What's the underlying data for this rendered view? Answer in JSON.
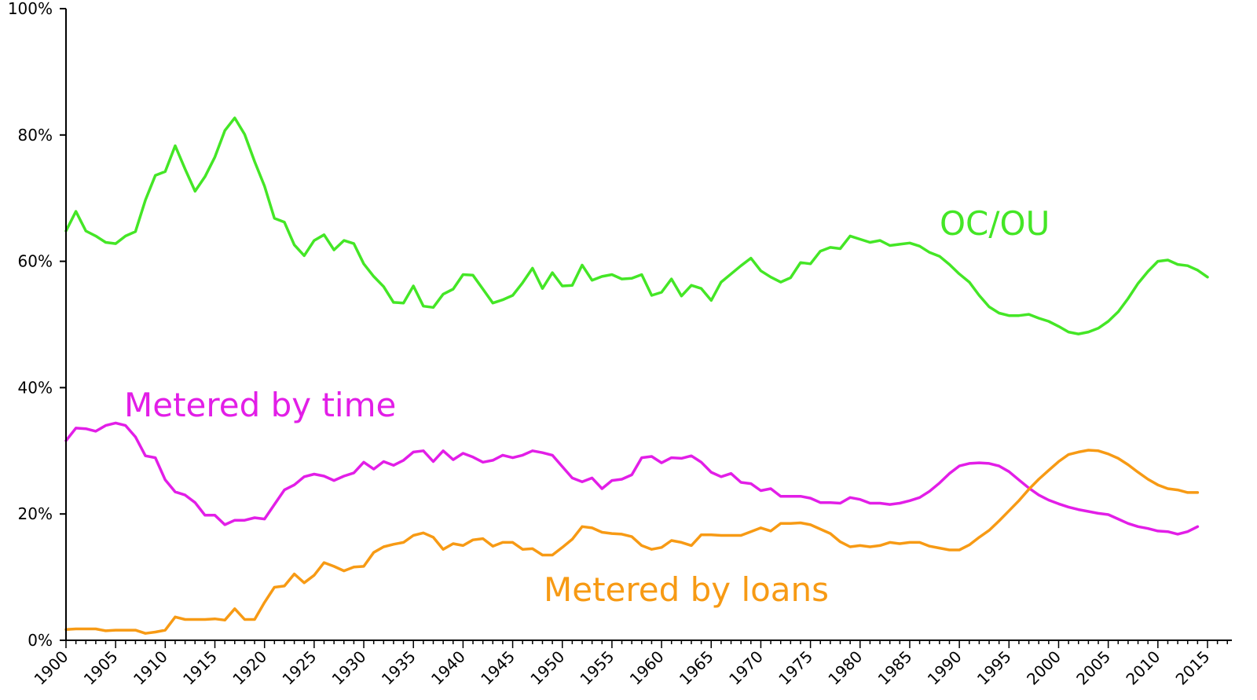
{
  "chart_data": {
    "type": "line",
    "title": "",
    "xlabel": "",
    "ylabel": "",
    "xlim": [
      1900,
      2018
    ],
    "ylim": [
      0,
      100
    ],
    "grid": false,
    "y_ticks": [
      "0%",
      "20%",
      "40%",
      "60%",
      "80%",
      "100%"
    ],
    "y_tick_values": [
      0,
      20,
      40,
      60,
      80,
      100
    ],
    "x_ticks": [
      "1900",
      "1905",
      "1910",
      "1915",
      "1920",
      "1925",
      "1930",
      "1935",
      "1940",
      "1945",
      "1950",
      "1955",
      "1960",
      "1965",
      "1970",
      "1975",
      "1980",
      "1985",
      "1990",
      "1995",
      "2000",
      "2005",
      "2010",
      "2015"
    ],
    "x_tick_values": [
      1900,
      1905,
      1910,
      1915,
      1920,
      1925,
      1930,
      1935,
      1940,
      1945,
      1950,
      1955,
      1960,
      1965,
      1970,
      1975,
      1980,
      1985,
      1990,
      1995,
      2000,
      2005,
      2010,
      2015
    ],
    "series": [
      {
        "name": "OC/OU",
        "color": "#44e626",
        "x": [
          1900,
          1901,
          1902,
          1903,
          1904,
          1905,
          1906,
          1907,
          1908,
          1909,
          1910,
          1911,
          1912,
          1913,
          1914,
          1915,
          1916,
          1917,
          1918,
          1919,
          1920,
          1921,
          1922,
          1923,
          1924,
          1925,
          1926,
          1927,
          1928,
          1929,
          1930,
          1931,
          1932,
          1933,
          1934,
          1935,
          1936,
          1937,
          1938,
          1939,
          1940,
          1941,
          1942,
          1943,
          1944,
          1945,
          1946,
          1947,
          1948,
          1949,
          1950,
          1951,
          1952,
          1953,
          1954,
          1955,
          1956,
          1957,
          1958,
          1959,
          1960,
          1961,
          1962,
          1963,
          1964,
          1965,
          1966,
          1967,
          1968,
          1969,
          1970,
          1971,
          1972,
          1973,
          1974,
          1975,
          1976,
          1977,
          1978,
          1979,
          1980,
          1981,
          1982,
          1983,
          1984,
          1985,
          1986,
          1987,
          1988,
          1989,
          1990,
          1991,
          1992,
          1993,
          1994,
          1995,
          1996,
          1997,
          1998,
          1999,
          2000,
          2001,
          2002,
          2003,
          2004,
          2005,
          2006,
          2007,
          2008,
          2009,
          2010,
          2011,
          2012,
          2013,
          2014,
          2015
        ],
        "values": [
          64.8,
          67.9,
          64.8,
          64.0,
          63.0,
          62.8,
          64.0,
          64.7,
          69.7,
          73.6,
          74.2,
          78.3,
          74.6,
          71.1,
          73.4,
          76.5,
          80.7,
          82.7,
          80.1,
          75.8,
          71.9,
          66.8,
          66.2,
          62.6,
          60.9,
          63.3,
          64.2,
          61.8,
          63.3,
          62.8,
          59.6,
          57.6,
          56.0,
          53.5,
          53.4,
          56.1,
          52.9,
          52.7,
          54.8,
          55.6,
          57.9,
          57.8,
          55.6,
          53.4,
          53.9,
          54.6,
          56.6,
          58.9,
          55.7,
          58.2,
          56.1,
          56.2,
          59.4,
          57.0,
          57.6,
          57.9,
          57.2,
          57.3,
          57.9,
          54.6,
          55.1,
          57.2,
          54.5,
          56.2,
          55.7,
          53.8,
          56.7,
          58.0,
          59.3,
          60.5,
          58.5,
          57.5,
          56.7,
          57.4,
          59.8,
          59.6,
          61.6,
          62.2,
          62.0,
          64.0,
          63.5,
          63.0,
          63.3,
          62.5,
          62.7,
          62.9,
          62.4,
          61.4,
          60.8,
          59.5,
          58.0,
          56.7,
          54.6,
          52.8,
          51.8,
          51.4,
          51.4,
          51.6,
          51.0,
          50.5,
          49.7,
          48.8,
          48.5,
          48.8,
          49.4,
          50.5,
          52.0,
          54.1,
          56.5,
          58.4,
          60.0,
          60.2,
          59.5,
          59.3,
          58.6,
          57.5
        ]
      },
      {
        "name": "Metered by time",
        "color": "#e21ee7",
        "x": [
          1900,
          1901,
          1902,
          1903,
          1904,
          1905,
          1906,
          1907,
          1908,
          1909,
          1910,
          1911,
          1912,
          1913,
          1914,
          1915,
          1916,
          1917,
          1918,
          1919,
          1920,
          1921,
          1922,
          1923,
          1924,
          1925,
          1926,
          1927,
          1928,
          1929,
          1930,
          1931,
          1932,
          1933,
          1934,
          1935,
          1936,
          1937,
          1938,
          1939,
          1940,
          1941,
          1942,
          1943,
          1944,
          1945,
          1946,
          1947,
          1948,
          1949,
          1950,
          1951,
          1952,
          1953,
          1954,
          1955,
          1956,
          1957,
          1958,
          1959,
          1960,
          1961,
          1962,
          1963,
          1964,
          1965,
          1966,
          1967,
          1968,
          1969,
          1970,
          1971,
          1972,
          1973,
          1974,
          1975,
          1976,
          1977,
          1978,
          1979,
          1980,
          1981,
          1982,
          1983,
          1984,
          1985,
          1986,
          1987,
          1988,
          1989,
          1990,
          1991,
          1992,
          1993,
          1994,
          1995,
          1996,
          1997,
          1998,
          1999,
          2000,
          2001,
          2002,
          2003,
          2004,
          2005,
          2006,
          2007,
          2008,
          2009,
          2010,
          2011,
          2012,
          2013,
          2014
        ],
        "values": [
          31.6,
          33.6,
          33.5,
          33.1,
          34.0,
          34.4,
          34.0,
          32.2,
          29.2,
          28.9,
          25.4,
          23.5,
          23.0,
          21.8,
          19.8,
          19.8,
          18.3,
          19.0,
          19.0,
          19.4,
          19.2,
          21.5,
          23.8,
          24.6,
          25.9,
          26.3,
          26.0,
          25.3,
          26.0,
          26.5,
          28.2,
          27.1,
          28.3,
          27.7,
          28.5,
          29.8,
          30.0,
          28.3,
          30.0,
          28.6,
          29.6,
          29.0,
          28.2,
          28.5,
          29.3,
          28.9,
          29.3,
          30.0,
          29.7,
          29.3,
          27.5,
          25.7,
          25.1,
          25.7,
          24.0,
          25.3,
          25.5,
          26.2,
          28.9,
          29.1,
          28.1,
          28.9,
          28.8,
          29.2,
          28.2,
          26.6,
          25.9,
          26.4,
          25.0,
          24.8,
          23.7,
          24.0,
          22.8,
          22.8,
          22.8,
          22.5,
          21.8,
          21.8,
          21.7,
          22.6,
          22.3,
          21.7,
          21.7,
          21.5,
          21.7,
          22.1,
          22.6,
          23.6,
          24.9,
          26.4,
          27.6,
          28.0,
          28.1,
          28.0,
          27.6,
          26.7,
          25.4,
          24.1,
          23.0,
          22.2,
          21.6,
          21.1,
          20.7,
          20.4,
          20.1,
          19.9,
          19.2,
          18.5,
          18.0,
          17.7,
          17.3,
          17.2,
          16.8,
          17.2,
          18.0
        ]
      },
      {
        "name": "Metered by loans",
        "color": "#f79a14",
        "x": [
          1900,
          1901,
          1902,
          1903,
          1904,
          1905,
          1906,
          1907,
          1908,
          1909,
          1910,
          1911,
          1912,
          1913,
          1914,
          1915,
          1916,
          1917,
          1918,
          1919,
          1920,
          1921,
          1922,
          1923,
          1924,
          1925,
          1926,
          1927,
          1928,
          1929,
          1930,
          1931,
          1932,
          1933,
          1934,
          1935,
          1936,
          1937,
          1938,
          1939,
          1940,
          1941,
          1942,
          1943,
          1944,
          1945,
          1946,
          1947,
          1948,
          1949,
          1950,
          1951,
          1952,
          1953,
          1954,
          1955,
          1956,
          1957,
          1958,
          1959,
          1960,
          1961,
          1962,
          1963,
          1964,
          1965,
          1966,
          1967,
          1968,
          1969,
          1970,
          1971,
          1972,
          1973,
          1974,
          1975,
          1976,
          1977,
          1978,
          1979,
          1980,
          1981,
          1982,
          1983,
          1984,
          1985,
          1986,
          1987,
          1988,
          1989,
          1990,
          1991,
          1992,
          1993,
          1994,
          1995,
          1996,
          1997,
          1998,
          1999,
          2000,
          2001,
          2002,
          2003,
          2004,
          2005,
          2006,
          2007,
          2008,
          2009,
          2010,
          2011,
          2012,
          2013,
          2014
        ],
        "values": [
          1.7,
          1.8,
          1.8,
          1.8,
          1.5,
          1.6,
          1.6,
          1.6,
          1.1,
          1.3,
          1.6,
          3.7,
          3.3,
          3.3,
          3.3,
          3.4,
          3.2,
          5.0,
          3.3,
          3.3,
          6.0,
          8.4,
          8.6,
          10.5,
          9.1,
          10.3,
          12.3,
          11.7,
          11.0,
          11.6,
          11.7,
          13.9,
          14.8,
          15.2,
          15.5,
          16.6,
          17.0,
          16.3,
          14.4,
          15.3,
          15.0,
          15.9,
          16.1,
          14.9,
          15.5,
          15.5,
          14.4,
          14.5,
          13.5,
          13.5,
          14.7,
          16.0,
          18.0,
          17.8,
          17.1,
          16.9,
          16.8,
          16.4,
          15.0,
          14.4,
          14.7,
          15.8,
          15.5,
          15.0,
          16.7,
          16.7,
          16.6,
          16.6,
          16.6,
          17.2,
          17.8,
          17.3,
          18.5,
          18.5,
          18.6,
          18.3,
          17.6,
          16.9,
          15.6,
          14.8,
          15.0,
          14.8,
          15.0,
          15.5,
          15.3,
          15.5,
          15.5,
          14.9,
          14.6,
          14.3,
          14.3,
          15.1,
          16.3,
          17.4,
          18.9,
          20.5,
          22.1,
          23.9,
          25.5,
          26.9,
          28.3,
          29.4,
          29.8,
          30.1,
          30.0,
          29.5,
          28.8,
          27.8,
          26.6,
          25.5,
          24.6,
          24.0,
          23.8,
          23.4,
          23.4
        ]
      }
    ],
    "labels": {
      "oc_ou": "OC/OU",
      "time": "Metered by time",
      "loans": "Metered by loans"
    }
  }
}
